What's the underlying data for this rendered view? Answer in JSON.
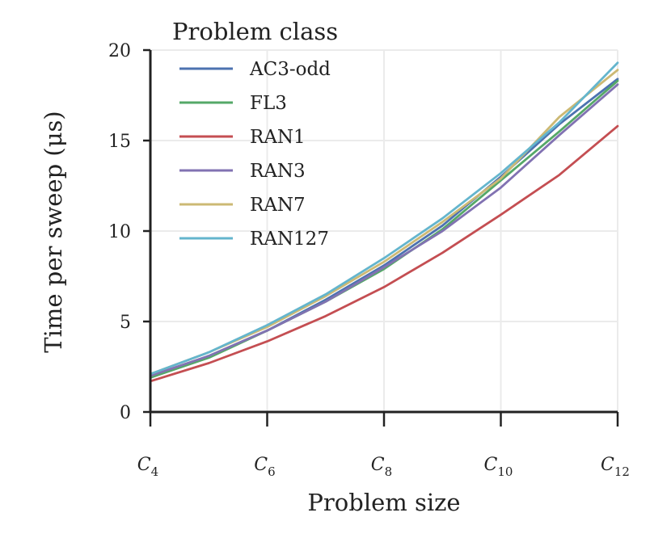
{
  "chart_data": {
    "type": "line",
    "title": "",
    "xlabel": "Problem size",
    "ylabel": "Time per sweep (μs)",
    "x": [
      4,
      5,
      6,
      7,
      8,
      9,
      10,
      11,
      12
    ],
    "x_ticks": [
      {
        "value": 4,
        "base": "C",
        "sub": "4"
      },
      {
        "value": 6,
        "base": "C",
        "sub": "6"
      },
      {
        "value": 8,
        "base": "C",
        "sub": "8"
      },
      {
        "value": 10,
        "base": "C",
        "sub": "10"
      },
      {
        "value": 12,
        "base": "C",
        "sub": "12"
      }
    ],
    "xlim": [
      4,
      12
    ],
    "ylim": [
      0,
      20
    ],
    "y_ticks": [
      0,
      5,
      10,
      15,
      20
    ],
    "grid": true,
    "legend": {
      "title": "Problem class",
      "placement": "top-left"
    },
    "series": [
      {
        "name": "AC3-odd",
        "color": "#4c72b0",
        "values": [
          1.9,
          3.1,
          4.5,
          6.2,
          8.1,
          10.3,
          13.0,
          15.9,
          18.4
        ]
      },
      {
        "name": "FL3",
        "color": "#55a868",
        "values": [
          1.9,
          3.0,
          4.5,
          6.1,
          7.9,
          10.1,
          12.8,
          15.5,
          18.3
        ]
      },
      {
        "name": "RAN1",
        "color": "#c44e52",
        "values": [
          1.7,
          2.7,
          3.9,
          5.3,
          6.9,
          8.8,
          10.9,
          13.1,
          15.8
        ]
      },
      {
        "name": "RAN3",
        "color": "#8172b2",
        "values": [
          2.0,
          3.1,
          4.5,
          6.1,
          8.0,
          10.0,
          12.4,
          15.3,
          18.1
        ]
      },
      {
        "name": "RAN7",
        "color": "#ccb974",
        "values": [
          2.1,
          3.3,
          4.7,
          6.4,
          8.3,
          10.5,
          12.9,
          16.3,
          18.9
        ]
      },
      {
        "name": "RAN127",
        "color": "#64b5cd",
        "values": [
          2.1,
          3.3,
          4.8,
          6.5,
          8.5,
          10.7,
          13.2,
          16.0,
          19.3
        ]
      }
    ]
  }
}
